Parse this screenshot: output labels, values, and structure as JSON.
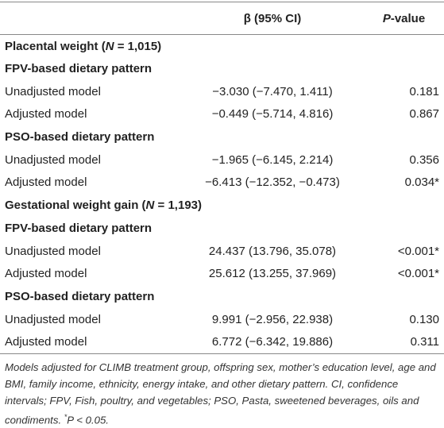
{
  "table": {
    "header": {
      "estimate": "β (95% CI)",
      "p_symbol": "P",
      "p_rest": "-value"
    },
    "sections": [
      {
        "title_start": "Placental weight (",
        "n_symbol": "N",
        "title_end": " = 1,015)",
        "groups": [
          {
            "title": "FPV-based dietary pattern",
            "rows": [
              [
                "Unadjusted model",
                "−3.030 (−7.470, 1.411)",
                "0.181"
              ],
              [
                "Adjusted model",
                "−0.449 (−5.714, 4.816)",
                "0.867"
              ]
            ]
          },
          {
            "title": "PSO-based dietary pattern",
            "rows": [
              [
                "Unadjusted model",
                "−1.965 (−6.145, 2.214)",
                "0.356"
              ],
              [
                "Adjusted model",
                "−6.413 (−12.352, −0.473)",
                "0.034*"
              ]
            ]
          }
        ]
      },
      {
        "title_start": "Gestational weight gain (",
        "n_symbol": "N",
        "title_end": " = 1,193)",
        "groups": [
          {
            "title": "FPV-based dietary pattern",
            "rows": [
              [
                "Unadjusted model",
                "24.437 (13.796, 35.078)",
                "<0.001*"
              ],
              [
                "Adjusted model",
                "25.612 (13.255, 37.969)",
                "<0.001*"
              ]
            ]
          },
          {
            "title": "PSO-based dietary pattern",
            "rows": [
              [
                "Unadjusted model",
                "9.991 (−2.956, 22.938)",
                "0.130"
              ],
              [
                "Adjusted model",
                "6.772 (−6.342, 19.886)",
                "0.311"
              ]
            ]
          }
        ]
      }
    ]
  },
  "footnote": {
    "text": "Models adjusted for CLIMB treatment group, offspring sex, mother’s education level, age and BMI, family income, ethnicity, energy intake, and other dietary pattern. CI, confidence intervals; FPV, Fish, poultry, and vegetables; PSO, Pasta, sweetened beverages, oils and condiments. ",
    "mark": "*",
    "p_symbol": "P",
    "rest": " < 0.05."
  }
}
